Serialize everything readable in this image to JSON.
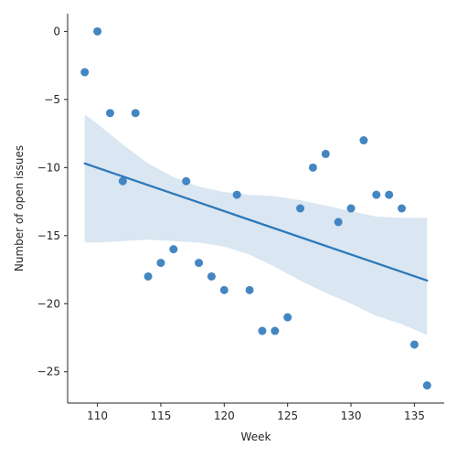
{
  "chart_data": {
    "type": "scatter",
    "title": "",
    "xlabel": "Week",
    "ylabel": "Number of open issues",
    "xlim": [
      107.65,
      137.35
    ],
    "ylim": [
      -27.3,
      1.3
    ],
    "xticks": [
      110,
      115,
      120,
      125,
      130,
      135
    ],
    "yticks": [
      0,
      -5,
      -10,
      -15,
      -20,
      -25
    ],
    "xtick_labels": [
      "110",
      "115",
      "120",
      "125",
      "130",
      "135"
    ],
    "ytick_labels": [
      "0",
      "−5",
      "−10",
      "−15",
      "−20",
      "−25"
    ],
    "grid": false,
    "legend": "none",
    "series": [
      {
        "points": [
          {
            "x": 109,
            "y": -3
          },
          {
            "x": 110,
            "y": 0
          },
          {
            "x": 111,
            "y": -6
          },
          {
            "x": 112,
            "y": -11
          },
          {
            "x": 113,
            "y": -6
          },
          {
            "x": 114,
            "y": -18
          },
          {
            "x": 115,
            "y": -17
          },
          {
            "x": 116,
            "y": -16
          },
          {
            "x": 117,
            "y": -11
          },
          {
            "x": 118,
            "y": -17
          },
          {
            "x": 119,
            "y": -18
          },
          {
            "x": 120,
            "y": -19
          },
          {
            "x": 121,
            "y": -12
          },
          {
            "x": 122,
            "y": -19
          },
          {
            "x": 123,
            "y": -22
          },
          {
            "x": 124,
            "y": -22
          },
          {
            "x": 125,
            "y": -21
          },
          {
            "x": 126,
            "y": -13
          },
          {
            "x": 127,
            "y": -10
          },
          {
            "x": 128,
            "y": -9
          },
          {
            "x": 129,
            "y": -14
          },
          {
            "x": 130,
            "y": -13
          },
          {
            "x": 131,
            "y": -8
          },
          {
            "x": 132,
            "y": -12
          },
          {
            "x": 133,
            "y": -12
          },
          {
            "x": 134,
            "y": -13
          },
          {
            "x": 135,
            "y": -23
          },
          {
            "x": 136,
            "y": -26
          }
        ]
      }
    ],
    "regression_line": [
      {
        "x": 109,
        "y": -9.7
      },
      {
        "x": 136,
        "y": -18.3
      }
    ],
    "confidence_band": {
      "x": [
        109,
        110,
        112,
        114,
        116,
        118,
        120,
        122,
        124,
        126,
        128,
        130,
        132,
        134,
        136
      ],
      "upper": [
        -6.1,
        -6.8,
        -8.3,
        -9.7,
        -10.7,
        -11.4,
        -11.8,
        -12.0,
        -12.1,
        -12.4,
        -12.8,
        -13.2,
        -13.6,
        -13.7,
        -13.7
      ],
      "lower": [
        -15.5,
        -15.5,
        -15.4,
        -15.3,
        -15.4,
        -15.5,
        -15.8,
        -16.4,
        -17.3,
        -18.3,
        -19.2,
        -20.0,
        -20.9,
        -21.5,
        -22.3
      ]
    },
    "colors": {
      "points": "#3a80bf",
      "line": "#2b78ba",
      "band": "#dae6f1",
      "axis": "#262626"
    }
  }
}
